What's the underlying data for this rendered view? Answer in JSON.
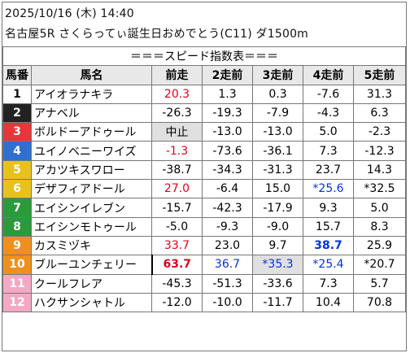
{
  "header": {
    "line1": "2025/10/16 (木) 14:40",
    "line2": "名古屋5R さくらってぃ誕生日おめでとう(C11) ダ1500m"
  },
  "table_title": "＝＝＝スピード指数表＝＝＝",
  "columns": [
    "馬番",
    "馬名",
    "前走",
    "2走前",
    "3走前",
    "4走前",
    "5走前"
  ],
  "colors": {
    "red": "#e0001b",
    "blue": "#0033dd",
    "gate": [
      "#ffffff",
      "#222222",
      "#e8363a",
      "#2f6fcf",
      "#e7c21c",
      "#e7c21c",
      "#2a9a3a",
      "#2a9a3a",
      "#f0901c",
      "#f0901c",
      "#f4a8c4",
      "#f4a8c4"
    ]
  },
  "rows": [
    {
      "no": "1",
      "name": "アイオラナキラ",
      "r": [
        {
          "t": "20.3",
          "c": "red"
        },
        {
          "t": "1.3"
        },
        {
          "t": "0.3"
        },
        {
          "t": "-7.6"
        },
        {
          "t": "31.3"
        }
      ]
    },
    {
      "no": "2",
      "name": "アナベル",
      "r": [
        {
          "t": "-26.3"
        },
        {
          "t": "-19.3"
        },
        {
          "t": "-7.9"
        },
        {
          "t": "-4.3"
        },
        {
          "t": "6.3"
        }
      ]
    },
    {
      "no": "3",
      "name": "ボルドーアドゥール",
      "r": [
        {
          "t": "中止",
          "g": true
        },
        {
          "t": "-13.0"
        },
        {
          "t": "-13.0"
        },
        {
          "t": "5.0"
        },
        {
          "t": "-2.3"
        }
      ]
    },
    {
      "no": "4",
      "name": "ユイノベニーワイズ",
      "r": [
        {
          "t": "-1.3",
          "c": "red"
        },
        {
          "t": "-73.6"
        },
        {
          "t": "-36.1"
        },
        {
          "t": "7.3"
        },
        {
          "t": "-12.3"
        }
      ]
    },
    {
      "no": "5",
      "name": "アカツキスワロー",
      "r": [
        {
          "t": "-38.7"
        },
        {
          "t": "-34.3"
        },
        {
          "t": "-31.3"
        },
        {
          "t": "23.7"
        },
        {
          "t": "14.3"
        }
      ]
    },
    {
      "no": "6",
      "name": "デザフィアドール",
      "r": [
        {
          "t": "27.0",
          "c": "red"
        },
        {
          "t": "-6.4"
        },
        {
          "t": "15.0"
        },
        {
          "t": "*25.6",
          "c": "blue"
        },
        {
          "t": "*32.5"
        }
      ]
    },
    {
      "no": "7",
      "name": "エイシンイレブン",
      "r": [
        {
          "t": "-15.7"
        },
        {
          "t": "-42.3"
        },
        {
          "t": "-17.9"
        },
        {
          "t": "9.3"
        },
        {
          "t": "5.0"
        }
      ]
    },
    {
      "no": "8",
      "name": "エイシンモトゥール",
      "r": [
        {
          "t": "-5.0"
        },
        {
          "t": "-9.3"
        },
        {
          "t": "-9.0"
        },
        {
          "t": "15.7"
        },
        {
          "t": "8.3"
        }
      ]
    },
    {
      "no": "9",
      "name": "カスミヅキ",
      "r": [
        {
          "t": "33.7",
          "c": "red"
        },
        {
          "t": "23.0"
        },
        {
          "t": "9.7"
        },
        {
          "t": "38.7",
          "c": "blue",
          "b": true
        },
        {
          "t": "25.9"
        }
      ]
    },
    {
      "no": "10",
      "name": "ブルーユンチェリー",
      "r": [
        {
          "t": "63.7",
          "c": "red",
          "b": true,
          "bl": true
        },
        {
          "t": "36.7",
          "c": "blue"
        },
        {
          "t": "*35.3",
          "c": "blue",
          "g": true
        },
        {
          "t": "*25.4",
          "c": "blue"
        },
        {
          "t": "*20.7"
        }
      ]
    },
    {
      "no": "11",
      "name": "クールフレア",
      "r": [
        {
          "t": "-45.3"
        },
        {
          "t": "-51.3"
        },
        {
          "t": "-33.6"
        },
        {
          "t": "7.3"
        },
        {
          "t": "5.7"
        }
      ]
    },
    {
      "no": "12",
      "name": "ハクサンシャトル",
      "r": [
        {
          "t": "-12.0"
        },
        {
          "t": "-10.0"
        },
        {
          "t": "-11.7"
        },
        {
          "t": "10.4"
        },
        {
          "t": "70.8"
        }
      ]
    }
  ]
}
